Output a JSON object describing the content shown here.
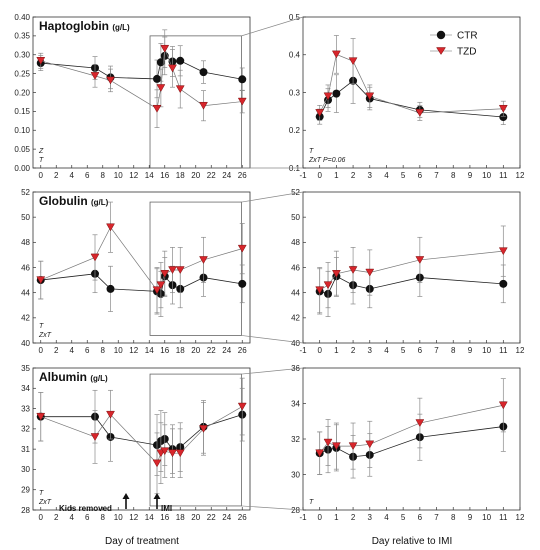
{
  "legend": {
    "ctr_label": "CTR",
    "tzd_label": "TZD",
    "ctr_color": "#111111",
    "tzd_color": "#d7262c"
  },
  "xlabels": {
    "left": "Day of treatment",
    "right": "Day relative to IMI"
  },
  "annotations": {
    "kids_removed": "Kids removed",
    "imi": "IMI",
    "kids_removed_day": 11,
    "imi_day": 15
  },
  "chart_data": [
    {
      "id": "hapto-left",
      "type": "line",
      "title": "Haptoglobin",
      "unit": "(g/L)",
      "significance": [
        "Z",
        "T"
      ],
      "xlim": [
        -1,
        27
      ],
      "xticks": [
        0,
        2,
        4,
        6,
        8,
        10,
        12,
        14,
        16,
        18,
        20,
        22,
        24,
        26
      ],
      "ylim": [
        0.0,
        0.4
      ],
      "yticks": [
        "0.00",
        "0.05",
        "0.10",
        "0.15",
        "0.20",
        "0.25",
        "0.30",
        "0.35",
        "0.40"
      ],
      "zoom_box": {
        "x": [
          14.1,
          25.9
        ],
        "y": [
          0.0,
          0.35
        ]
      },
      "series": [
        {
          "name": "CTR",
          "x": [
            0,
            7,
            9,
            15,
            15.5,
            16,
            17,
            18,
            21,
            26
          ],
          "y": [
            0.278,
            0.265,
            0.24,
            0.236,
            0.28,
            0.297,
            0.282,
            0.284,
            0.254,
            0.235
          ],
          "err": [
            0.02,
            0.03,
            0.03,
            0.05,
            0.05,
            0.05,
            0.04,
            0.04,
            0.03,
            0.03
          ]
        },
        {
          "name": "TZD",
          "x": [
            0,
            7,
            9,
            15,
            15.5,
            16,
            17,
            18,
            21,
            26
          ],
          "y": [
            0.284,
            0.244,
            0.232,
            0.157,
            0.212,
            0.316,
            0.264,
            0.209,
            0.165,
            0.176
          ],
          "err": [
            0.02,
            0.03,
            0.03,
            0.05,
            0.05,
            0.05,
            0.05,
            0.05,
            0.04,
            0.03
          ]
        }
      ]
    },
    {
      "id": "hapto-right",
      "type": "line",
      "significance": [
        "T",
        "ZxT P=0.06"
      ],
      "xlim": [
        -1,
        12
      ],
      "xticks": [
        -1,
        0,
        1,
        2,
        3,
        4,
        5,
        6,
        7,
        8,
        9,
        10,
        11,
        12
      ],
      "ylim": [
        0.1,
        0.5
      ],
      "yticks": [
        "0.1",
        "0.2",
        "0.3",
        "0.4",
        "0.5"
      ],
      "series": [
        {
          "name": "CTR",
          "x": [
            0,
            0.5,
            1,
            2,
            3,
            6,
            11
          ],
          "y": [
            0.236,
            0.28,
            0.297,
            0.331,
            0.284,
            0.254,
            0.235
          ],
          "err": [
            0.02,
            0.03,
            0.05,
            0.06,
            0.03,
            0.02,
            0.02
          ]
        },
        {
          "name": "TZD",
          "x": [
            0,
            0.5,
            1,
            2,
            3,
            6,
            11
          ],
          "y": [
            0.246,
            0.29,
            0.401,
            0.383,
            0.29,
            0.246,
            0.257
          ],
          "err": [
            0.02,
            0.03,
            0.05,
            0.06,
            0.03,
            0.02,
            0.02
          ]
        }
      ]
    },
    {
      "id": "glob-left",
      "type": "line",
      "title": "Globulin",
      "unit": "(g/L)",
      "significance": [
        "T",
        "ZxT"
      ],
      "xlim": [
        -1,
        27
      ],
      "xticks": [
        0,
        2,
        4,
        6,
        8,
        10,
        12,
        14,
        16,
        18,
        20,
        22,
        24,
        26
      ],
      "ylim": [
        40,
        52
      ],
      "yticks": [
        "40",
        "42",
        "44",
        "46",
        "48",
        "50",
        "52"
      ],
      "zoom_box": {
        "x": [
          14.1,
          25.9
        ],
        "y": [
          40.6,
          51.2
        ]
      },
      "series": [
        {
          "name": "CTR",
          "x": [
            0,
            7,
            9,
            15,
            15.5,
            16,
            17,
            18,
            21,
            26
          ],
          "y": [
            45.0,
            45.5,
            44.3,
            44.1,
            43.9,
            45.3,
            44.6,
            44.3,
            45.2,
            44.7
          ],
          "err": [
            1.5,
            1.5,
            1.8,
            1.8,
            1.8,
            1.5,
            1.5,
            1.5,
            1.5,
            1.5
          ]
        },
        {
          "name": "TZD",
          "x": [
            0,
            7,
            9,
            15,
            15.5,
            16,
            17,
            18,
            21,
            26
          ],
          "y": [
            45.0,
            46.8,
            49.2,
            44.2,
            44.6,
            45.5,
            45.8,
            45.8,
            46.6,
            47.5
          ],
          "err": [
            1.5,
            1.8,
            2.0,
            1.8,
            1.8,
            1.8,
            1.8,
            1.8,
            1.8,
            2.0
          ]
        }
      ]
    },
    {
      "id": "glob-right",
      "type": "line",
      "xlim": [
        -1,
        12
      ],
      "xticks": [
        -1,
        0,
        1,
        2,
        3,
        4,
        5,
        6,
        7,
        8,
        9,
        10,
        11,
        12
      ],
      "ylim": [
        40,
        52
      ],
      "yticks": [
        "40",
        "42",
        "44",
        "46",
        "48",
        "50",
        "52"
      ],
      "series": [
        {
          "name": "CTR",
          "x": [
            0,
            0.5,
            1,
            2,
            3,
            6,
            11
          ],
          "y": [
            44.1,
            43.9,
            45.3,
            44.6,
            44.3,
            45.2,
            44.7
          ],
          "err": [
            1.8,
            1.8,
            1.5,
            1.5,
            1.5,
            1.5,
            1.5
          ]
        },
        {
          "name": "TZD",
          "x": [
            0,
            0.5,
            1,
            2,
            3,
            6,
            11
          ],
          "y": [
            44.2,
            44.6,
            45.5,
            45.8,
            45.6,
            46.6,
            47.3
          ],
          "err": [
            1.8,
            1.8,
            1.8,
            1.8,
            1.8,
            1.8,
            2.0
          ]
        }
      ]
    },
    {
      "id": "alb-left",
      "type": "line",
      "title": "Albumin",
      "unit": "(g/L)",
      "significance": [
        "T",
        "ZxT"
      ],
      "xlim": [
        -1,
        27
      ],
      "xticks": [
        0,
        2,
        4,
        6,
        8,
        10,
        12,
        14,
        16,
        18,
        20,
        22,
        24,
        26
      ],
      "ylim": [
        28,
        35
      ],
      "yticks": [
        "28",
        "29",
        "30",
        "31",
        "32",
        "33",
        "34",
        "35"
      ],
      "zoom_box": {
        "x": [
          14.1,
          25.9
        ],
        "y": [
          28.2,
          34.7
        ]
      },
      "series": [
        {
          "name": "CTR",
          "x": [
            0,
            7,
            9,
            15,
            15.5,
            16,
            17,
            18,
            21,
            26
          ],
          "y": [
            32.6,
            32.6,
            31.6,
            31.2,
            31.4,
            31.5,
            31.0,
            31.1,
            32.1,
            32.7
          ],
          "err": [
            1.2,
            1.3,
            1.2,
            1.5,
            1.5,
            1.3,
            1.2,
            1.2,
            1.3,
            1.3
          ]
        },
        {
          "name": "TZD",
          "x": [
            0,
            7,
            9,
            15,
            15.5,
            16,
            17,
            18,
            21,
            26
          ],
          "y": [
            32.6,
            31.6,
            32.7,
            30.3,
            30.8,
            30.9,
            30.8,
            30.8,
            32.0,
            33.1
          ],
          "err": [
            1.2,
            1.3,
            1.2,
            1.5,
            1.5,
            1.3,
            1.2,
            1.2,
            1.3,
            1.4
          ]
        }
      ]
    },
    {
      "id": "alb-right",
      "type": "line",
      "significance": [
        "T"
      ],
      "xlim": [
        -1,
        12
      ],
      "xticks": [
        -1,
        0,
        1,
        2,
        3,
        4,
        5,
        6,
        7,
        8,
        9,
        10,
        11,
        12
      ],
      "ylim": [
        28,
        36
      ],
      "yticks": [
        "28",
        "30",
        "32",
        "34",
        "36"
      ],
      "series": [
        {
          "name": "CTR",
          "x": [
            0,
            0.5,
            1,
            2,
            3,
            6,
            11
          ],
          "y": [
            31.2,
            31.4,
            31.5,
            31.0,
            31.1,
            32.1,
            32.7
          ],
          "err": [
            1.2,
            1.3,
            1.3,
            1.2,
            1.2,
            1.3,
            1.4
          ]
        },
        {
          "name": "TZD",
          "x": [
            0,
            0.5,
            1,
            2,
            3,
            6,
            11
          ],
          "y": [
            31.2,
            31.8,
            31.6,
            31.6,
            31.7,
            32.9,
            33.9
          ],
          "err": [
            1.2,
            1.3,
            1.3,
            1.3,
            1.3,
            1.4,
            1.5
          ]
        }
      ]
    }
  ]
}
